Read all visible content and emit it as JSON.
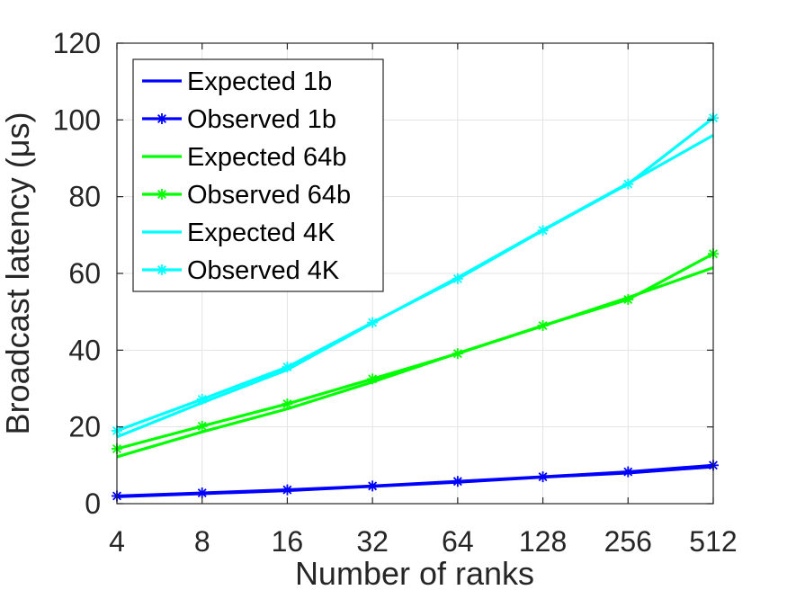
{
  "chart_data": {
    "type": "line",
    "title": "",
    "xlabel": "Number of ranks",
    "ylabel": "Broadcast latency (μs)",
    "categories": [
      "4",
      "8",
      "16",
      "32",
      "64",
      "128",
      "256",
      "512"
    ],
    "ylim": [
      0,
      120
    ],
    "yticks": [
      "0",
      "20",
      "40",
      "60",
      "80",
      "100",
      "120"
    ],
    "grid": true,
    "legend_position": "top-left",
    "series": [
      {
        "name": "Expected 1b",
        "color": "#0000ff",
        "marker": "none",
        "values": [
          1.8,
          2.6,
          3.4,
          4.5,
          5.6,
          6.9,
          8.0,
          9.6
        ]
      },
      {
        "name": "Observed 1b",
        "color": "#0000ff",
        "marker": "asterisk",
        "values": [
          2.0,
          2.8,
          3.6,
          4.6,
          5.8,
          7.0,
          8.3,
          10.0
        ]
      },
      {
        "name": "Expected 64b",
        "color": "#00ff00",
        "marker": "none",
        "values": [
          12.2,
          18.7,
          24.7,
          31.7,
          39.2,
          46.3,
          53.7,
          61.5
        ]
      },
      {
        "name": "Observed 64b",
        "color": "#00ff00",
        "marker": "asterisk",
        "values": [
          14.3,
          20.2,
          26.0,
          32.5,
          39.1,
          46.4,
          53.2,
          65.1
        ]
      },
      {
        "name": "Expected 4K",
        "color": "#00ffff",
        "marker": "none",
        "values": [
          17.4,
          26.3,
          34.9,
          47.1,
          58.9,
          71.3,
          83.5,
          96.0
        ]
      },
      {
        "name": "Observed 4K",
        "color": "#00ffff",
        "marker": "asterisk",
        "values": [
          19.0,
          27.2,
          35.6,
          47.2,
          58.6,
          71.2,
          83.3,
          100.5
        ]
      }
    ]
  }
}
